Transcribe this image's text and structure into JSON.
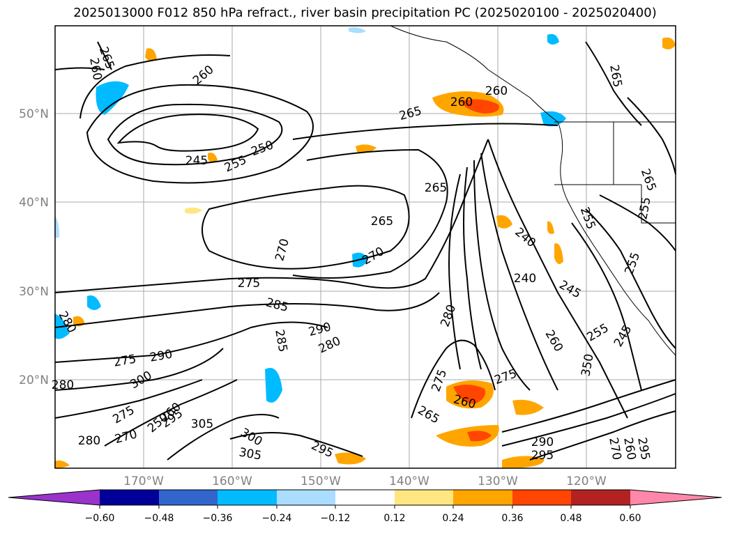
{
  "title": "2025013000 F012 850 hPa refract., river basin precipitation PC (2025020100 - 2025020400)",
  "map": {
    "lat_labels": [
      "50°N",
      "40°N",
      "30°N",
      "20°N"
    ],
    "lon_labels": [
      "170°W",
      "160°W",
      "150°W",
      "140°W",
      "130°W",
      "120°W"
    ],
    "contour_labels": [
      "265",
      "260",
      "260",
      "245",
      "255",
      "250",
      "265",
      "260",
      "260",
      "265",
      "265",
      "265",
      "255",
      "255",
      "270",
      "265",
      "270",
      "240",
      "240",
      "275",
      "285",
      "245",
      "290",
      "280",
      "280",
      "285",
      "280",
      "290",
      "275",
      "260",
      "255",
      "245",
      "350",
      "280",
      "275",
      "300",
      "295",
      "275",
      "270",
      "260",
      "305",
      "305",
      "300",
      "295",
      "295",
      "280",
      "270",
      "265",
      "260",
      "290",
      "295",
      "260",
      "275",
      "250",
      "255"
    ]
  },
  "colorbar": {
    "tick_labels": [
      "−0.60",
      "−0.48",
      "−0.36",
      "−0.24",
      "−0.12",
      "0.12",
      "0.24",
      "0.36",
      "0.48",
      "0.60"
    ],
    "colors": [
      "#9933cc",
      "#000099",
      "#3366cc",
      "#00bbff",
      "#aaddff",
      "#ffffff",
      "#ffe680",
      "#ffa500",
      "#ff4500",
      "#b22222",
      "#ff88aa"
    ]
  }
}
